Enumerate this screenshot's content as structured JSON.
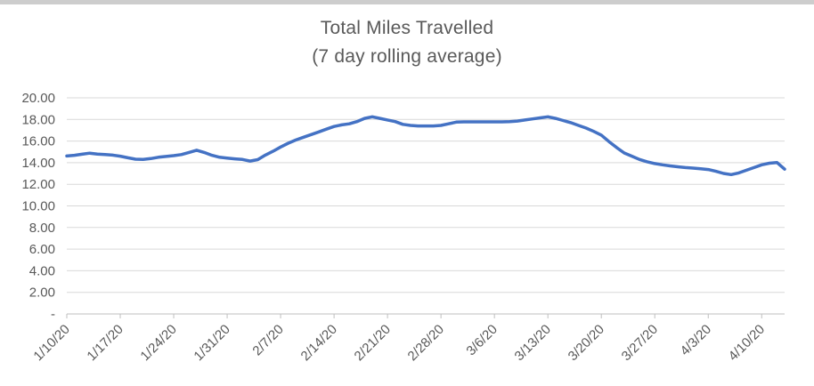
{
  "window": {
    "top_strip_color": "#cdcdcd"
  },
  "chart_data": {
    "type": "line",
    "title": "Total Miles Travelled",
    "subtitle": "(7 day rolling average)",
    "xlabel": "",
    "ylabel": "",
    "legend": "none",
    "gridlines": "horizontal",
    "ylim": [
      0,
      20
    ],
    "ytick_interval": 2,
    "ytick_labels": [
      {
        "value": 20,
        "label": "20.00"
      },
      {
        "value": 18,
        "label": "18.00"
      },
      {
        "value": 16,
        "label": "16.00"
      },
      {
        "value": 14,
        "label": "14.00"
      },
      {
        "value": 12,
        "label": "12.00"
      },
      {
        "value": 10,
        "label": "10.00"
      },
      {
        "value": 8,
        "label": "8.00"
      },
      {
        "value": 6,
        "label": "6.00"
      },
      {
        "value": 4,
        "label": "4.00"
      },
      {
        "value": 2,
        "label": "2.00"
      },
      {
        "value": 0,
        "label": "-"
      }
    ],
    "xtick_label_every": 7,
    "visible_x_labels": [
      "1/10/20",
      "1/17/20",
      "1/24/20",
      "1/31/20",
      "2/7/20",
      "2/14/20",
      "2/21/20",
      "2/28/20",
      "3/6/20",
      "3/13/20",
      "3/20/20",
      "3/27/20",
      "4/3/20",
      "4/10/20"
    ],
    "x": [
      "1/10/20",
      "1/11/20",
      "1/12/20",
      "1/13/20",
      "1/14/20",
      "1/15/20",
      "1/16/20",
      "1/17/20",
      "1/18/20",
      "1/19/20",
      "1/20/20",
      "1/21/20",
      "1/22/20",
      "1/23/20",
      "1/24/20",
      "1/25/20",
      "1/26/20",
      "1/27/20",
      "1/28/20",
      "1/29/20",
      "1/30/20",
      "1/31/20",
      "2/1/20",
      "2/2/20",
      "2/3/20",
      "2/4/20",
      "2/5/20",
      "2/6/20",
      "2/7/20",
      "2/8/20",
      "2/9/20",
      "2/10/20",
      "2/11/20",
      "2/12/20",
      "2/13/20",
      "2/14/20",
      "2/15/20",
      "2/16/20",
      "2/17/20",
      "2/18/20",
      "2/19/20",
      "2/20/20",
      "2/21/20",
      "2/22/20",
      "2/23/20",
      "2/24/20",
      "2/25/20",
      "2/26/20",
      "2/27/20",
      "2/28/20",
      "2/29/20",
      "3/1/20",
      "3/2/20",
      "3/3/20",
      "3/4/20",
      "3/5/20",
      "3/6/20",
      "3/7/20",
      "3/8/20",
      "3/9/20",
      "3/10/20",
      "3/11/20",
      "3/12/20",
      "3/13/20",
      "3/14/20",
      "3/15/20",
      "3/16/20",
      "3/17/20",
      "3/18/20",
      "3/19/20",
      "3/20/20",
      "3/21/20",
      "3/22/20",
      "3/23/20",
      "3/24/20",
      "3/25/20",
      "3/26/20",
      "3/27/20",
      "3/28/20",
      "3/29/20",
      "3/30/20",
      "3/31/20",
      "4/1/20",
      "4/2/20",
      "4/3/20",
      "4/4/20",
      "4/5/20",
      "4/6/20",
      "4/7/20",
      "4/8/20",
      "4/9/20",
      "4/10/20",
      "4/11/20",
      "4/12/20",
      "4/13/20"
    ],
    "values": [
      14.62,
      14.68,
      14.78,
      14.88,
      14.8,
      14.75,
      14.7,
      14.6,
      14.45,
      14.32,
      14.3,
      14.38,
      14.5,
      14.58,
      14.65,
      14.75,
      14.95,
      15.15,
      14.95,
      14.68,
      14.5,
      14.42,
      14.35,
      14.3,
      14.15,
      14.28,
      14.7,
      15.05,
      15.45,
      15.8,
      16.1,
      16.35,
      16.6,
      16.85,
      17.1,
      17.35,
      17.5,
      17.6,
      17.8,
      18.1,
      18.25,
      18.1,
      17.95,
      17.8,
      17.55,
      17.45,
      17.4,
      17.4,
      17.4,
      17.45,
      17.6,
      17.75,
      17.78,
      17.78,
      17.78,
      17.78,
      17.78,
      17.78,
      17.8,
      17.85,
      17.95,
      18.05,
      18.15,
      18.25,
      18.1,
      17.9,
      17.7,
      17.45,
      17.2,
      16.9,
      16.55,
      15.95,
      15.4,
      14.9,
      14.6,
      14.3,
      14.08,
      13.92,
      13.8,
      13.7,
      13.62,
      13.55,
      13.5,
      13.44,
      13.37,
      13.2,
      13.0,
      12.9,
      13.05,
      13.3,
      13.55,
      13.8,
      13.95,
      14.02,
      13.4
    ],
    "colors": {
      "line": "#4472C4",
      "gridline": "#D9D9D9",
      "axis": "#BFBFBF",
      "text": "#595959"
    }
  }
}
